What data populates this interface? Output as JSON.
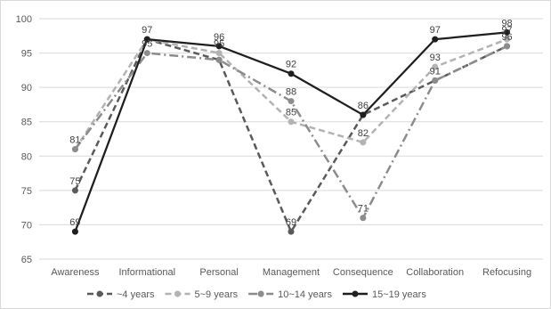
{
  "chart_data": {
    "type": "line",
    "title": "",
    "xlabel": "",
    "ylabel": "",
    "categories": [
      "Awareness",
      "Informational",
      "Personal",
      "Management",
      "Consequence",
      "Collaboration",
      "Refocusing"
    ],
    "ylim": [
      65,
      100
    ],
    "yticks": [
      65,
      70,
      75,
      80,
      85,
      90,
      95,
      100
    ],
    "grid": "horizontal",
    "legend_position": "bottom",
    "series": [
      {
        "name": "~4 years",
        "values": [
          75,
          97,
          94,
          69,
          86,
          91,
          96
        ],
        "color": "#5a5a5a",
        "dash": "dashed"
      },
      {
        "name": "5~9 years",
        "values": [
          81,
          97,
          95,
          85,
          82,
          93,
          97
        ],
        "color": "#b3b3b3",
        "dash": "dashed"
      },
      {
        "name": "10~14 years",
        "values": [
          81,
          95,
          94,
          88,
          71,
          91,
          96
        ],
        "color": "#8c8c8c",
        "dash": "dashdot"
      },
      {
        "name": "15~19 years",
        "values": [
          69,
          97,
          96,
          92,
          86,
          97,
          98
        ],
        "color": "#1f1f1f",
        "dash": "solid"
      }
    ],
    "data_labels": [
      {
        "series": 3,
        "index": 0,
        "text": "69"
      },
      {
        "series": 0,
        "index": 0,
        "text": "75"
      },
      {
        "series": 1,
        "index": 0,
        "text": "81"
      },
      {
        "series": 3,
        "index": 1,
        "text": "97"
      },
      {
        "series": 2,
        "index": 1,
        "text": "95"
      },
      {
        "series": 3,
        "index": 2,
        "text": "96"
      },
      {
        "series": 1,
        "index": 2,
        "text": "95"
      },
      {
        "series": 3,
        "index": 3,
        "text": "92"
      },
      {
        "series": 2,
        "index": 3,
        "text": "88"
      },
      {
        "series": 1,
        "index": 3,
        "text": "85"
      },
      {
        "series": 0,
        "index": 3,
        "text": "69"
      },
      {
        "series": 3,
        "index": 4,
        "text": "86"
      },
      {
        "series": 1,
        "index": 4,
        "text": "82"
      },
      {
        "series": 2,
        "index": 4,
        "text": "71"
      },
      {
        "series": 3,
        "index": 5,
        "text": "97"
      },
      {
        "series": 1,
        "index": 5,
        "text": "93"
      },
      {
        "series": 2,
        "index": 5,
        "text": "91"
      },
      {
        "series": 3,
        "index": 6,
        "text": "98"
      },
      {
        "series": 1,
        "index": 6,
        "text": "97"
      },
      {
        "series": 2,
        "index": 6,
        "text": "96"
      }
    ]
  }
}
